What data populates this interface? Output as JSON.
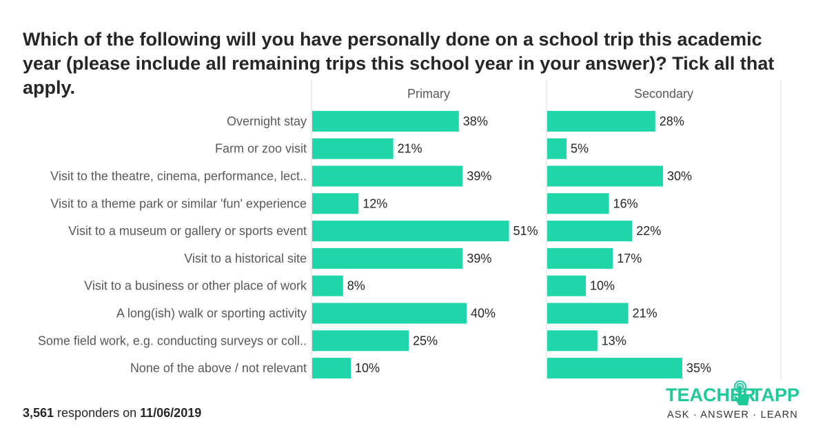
{
  "title": "Which of the following will you have personally done on a school trip this academic year (please include all remaining trips this school year in your answer)? Tick all that apply.",
  "footer": {
    "count": "3,561",
    "middle": " responders on ",
    "date": "11/06/2019"
  },
  "logo": {
    "word1": "TEACHER",
    "word2": "TAPP",
    "tagline": "ASK · ANSWER · LEARN"
  },
  "colors": {
    "bar": "#1fd6a8",
    "text": "#262626",
    "label": "#595959",
    "divider": "#d9d9d9",
    "brand": "#1ec99a"
  },
  "chart_data": {
    "type": "bar",
    "orientation": "horizontal",
    "categories": [
      "Overnight stay",
      "Farm or zoo visit",
      "Visit to the theatre, cinema, performance, lect..",
      "Visit to a theme park or similar 'fun' experience",
      "Visit to a museum or gallery or sports event",
      "Visit to a historical site",
      "Visit to a business or other place of work",
      "A long(ish) walk or sporting activity",
      "Some field work, e.g. conducting surveys or coll..",
      "None of the above / not relevant"
    ],
    "series": [
      {
        "name": "Primary",
        "values": [
          38,
          21,
          39,
          12,
          51,
          39,
          8,
          40,
          25,
          10
        ]
      },
      {
        "name": "Secondary",
        "values": [
          28,
          5,
          30,
          16,
          22,
          17,
          10,
          21,
          13,
          35
        ]
      }
    ],
    "value_suffix": "%",
    "xlim": [
      0,
      60
    ],
    "grid": false
  }
}
